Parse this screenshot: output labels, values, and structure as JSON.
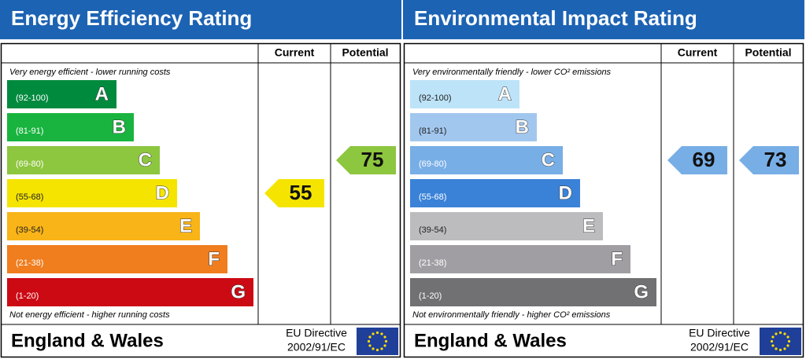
{
  "panels": [
    {
      "title": "Energy Efficiency Rating",
      "columns": [
        "Current",
        "Potential"
      ],
      "top_note": "Very energy efficient - lower running costs",
      "bottom_note": "Not energy efficient - higher running costs",
      "bands": [
        {
          "range": "(92-100)",
          "letter": "A",
          "color": "#008a3e"
        },
        {
          "range": "(81-91)",
          "letter": "B",
          "color": "#19b43f"
        },
        {
          "range": "(69-80)",
          "letter": "C",
          "color": "#8dc63f"
        },
        {
          "range": "(55-68)",
          "letter": "D",
          "color": "#f5e400"
        },
        {
          "range": "(39-54)",
          "letter": "E",
          "color": "#f9b417"
        },
        {
          "range": "(21-38)",
          "letter": "F",
          "color": "#f07d1e"
        },
        {
          "range": "(1-20)",
          "letter": "G",
          "color": "#cc0a14"
        }
      ],
      "current": 55,
      "potential": 75,
      "footer": {
        "region": "England & Wales",
        "directive": [
          "EU Directive",
          "2002/91/EC"
        ]
      }
    },
    {
      "title": "Environmental Impact Rating",
      "columns": [
        "Current",
        "Potential"
      ],
      "top_note": "Very environmentally friendly - lower CO² emissions",
      "bottom_note": "Not environmentally friendly - higher CO² emissions",
      "bands": [
        {
          "range": "(92-100)",
          "letter": "A",
          "color": "#bde3f8"
        },
        {
          "range": "(81-91)",
          "letter": "B",
          "color": "#a2c7ee"
        },
        {
          "range": "(69-80)",
          "letter": "C",
          "color": "#78aee6"
        },
        {
          "range": "(55-68)",
          "letter": "D",
          "color": "#3a82d8"
        },
        {
          "range": "(39-54)",
          "letter": "E",
          "color": "#bcbcbe"
        },
        {
          "range": "(21-38)",
          "letter": "F",
          "color": "#a09ea2"
        },
        {
          "range": "(1-20)",
          "letter": "G",
          "color": "#717173"
        }
      ],
      "current": 69,
      "potential": 73,
      "footer": {
        "region": "England & Wales",
        "directive": [
          "EU Directive",
          "2002/91/EC"
        ]
      }
    }
  ]
}
